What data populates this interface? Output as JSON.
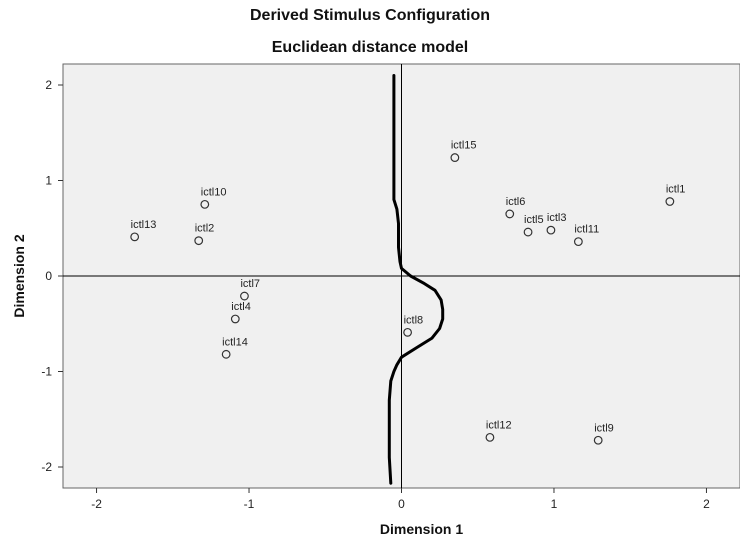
{
  "chart_data": {
    "type": "scatter",
    "title": "Derived Stimulus Configuration",
    "subtitle": "Euclidean distance model",
    "xlabel": "Dimension 1",
    "ylabel": "Dimension 2",
    "xlim": [
      -2.22,
      2.22
    ],
    "ylim": [
      -2.22,
      2.22
    ],
    "xticks": [
      "-2",
      "-1",
      "0",
      "1",
      "2"
    ],
    "yticks": [
      "2",
      "1",
      "0",
      "-1",
      "-2"
    ],
    "points": [
      {
        "label": "ictl1",
        "x": 1.76,
        "y": 0.78
      },
      {
        "label": "ictl2",
        "x": -1.33,
        "y": 0.37
      },
      {
        "label": "ictl3",
        "x": 0.98,
        "y": 0.48
      },
      {
        "label": "ictl4",
        "x": -1.09,
        "y": -0.45
      },
      {
        "label": "ictl5",
        "x": 0.83,
        "y": 0.46
      },
      {
        "label": "ictl6",
        "x": 0.71,
        "y": 0.65
      },
      {
        "label": "ictl7",
        "x": -1.03,
        "y": -0.21
      },
      {
        "label": "ictl8",
        "x": 0.04,
        "y": -0.59
      },
      {
        "label": "ictl9",
        "x": 1.29,
        "y": -1.72
      },
      {
        "label": "ictl10",
        "x": -1.29,
        "y": 0.75
      },
      {
        "label": "ictl11",
        "x": 1.16,
        "y": 0.36
      },
      {
        "label": "ictl12",
        "x": 0.58,
        "y": -1.69
      },
      {
        "label": "ictl13",
        "x": -1.75,
        "y": 0.41
      },
      {
        "label": "ictl14",
        "x": -1.15,
        "y": -0.82
      },
      {
        "label": "ictl15",
        "x": 0.35,
        "y": 1.24
      }
    ],
    "curve": [
      [
        -0.05,
        2.1
      ],
      [
        -0.05,
        1.5
      ],
      [
        -0.05,
        0.8
      ],
      [
        -0.03,
        0.7
      ],
      [
        -0.02,
        0.55
      ],
      [
        -0.02,
        0.3
      ],
      [
        -0.01,
        0.15
      ],
      [
        0.0,
        0.08
      ],
      [
        0.06,
        0.0
      ],
      [
        0.15,
        -0.08
      ],
      [
        0.22,
        -0.15
      ],
      [
        0.26,
        -0.25
      ],
      [
        0.27,
        -0.35
      ],
      [
        0.27,
        -0.45
      ],
      [
        0.25,
        -0.55
      ],
      [
        0.2,
        -0.65
      ],
      [
        0.1,
        -0.75
      ],
      [
        0.0,
        -0.85
      ],
      [
        -0.03,
        -0.93
      ],
      [
        -0.05,
        -1.0
      ],
      [
        -0.07,
        -1.1
      ],
      [
        -0.08,
        -1.3
      ],
      [
        -0.08,
        -1.6
      ],
      [
        -0.08,
        -1.9
      ],
      [
        -0.07,
        -2.17
      ]
    ],
    "grid": false,
    "background": "#f0f0f0"
  }
}
